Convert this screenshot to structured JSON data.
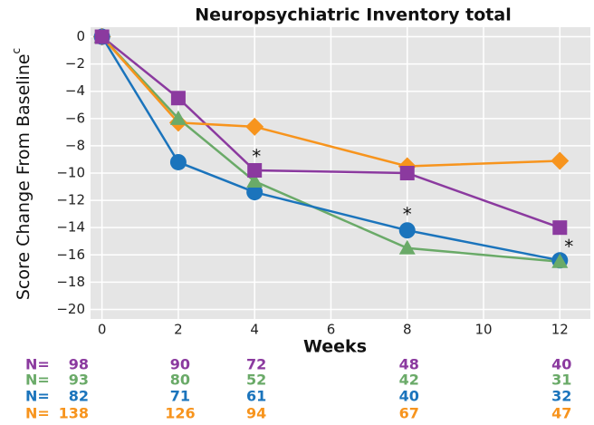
{
  "chart_data": {
    "type": "line",
    "title": "Neuropsychiatric Inventory total",
    "xlabel": "Weeks",
    "ylabel": "Score Change From Baseline",
    "ylabel_superscript": "c",
    "x": [
      0,
      2,
      4,
      8,
      12
    ],
    "xlim": [
      -0.3,
      12.8
    ],
    "xticks": [
      0,
      2,
      4,
      6,
      8,
      10,
      12
    ],
    "ylim": [
      -20.7,
      0.7
    ],
    "yticks": [
      0,
      {
        "value": -2,
        "label": "−2"
      },
      {
        "value": -4,
        "label": "−4"
      },
      {
        "value": -6,
        "label": "−6"
      },
      {
        "value": -8,
        "label": "−8"
      },
      {
        "value": -10,
        "label": "−10"
      },
      {
        "value": -12,
        "label": "−12"
      },
      {
        "value": -14,
        "label": "−14"
      },
      {
        "value": -16,
        "label": "−16"
      },
      {
        "value": -18,
        "label": "−18"
      },
      {
        "value": -20,
        "label": "−20"
      }
    ],
    "grid": true,
    "series": [
      {
        "color": "#8b3a9f",
        "marker": "square",
        "values": [
          0,
          -4.5,
          -9.8,
          -10,
          -14
        ]
      },
      {
        "color": "#6aaa68",
        "marker": "triangle",
        "values": [
          0,
          -6,
          -10.6,
          -15.5,
          -16.5
        ]
      },
      {
        "color": "#1b74bc",
        "marker": "circle",
        "values": [
          0,
          -9.2,
          -11.4,
          -14.2,
          -16.4
        ]
      },
      {
        "color": "#f7941d",
        "marker": "diamond",
        "values": [
          0,
          -6.3,
          -6.6,
          -9.5,
          -9.1
        ]
      }
    ],
    "annotations": [
      "*",
      "*",
      "*"
    ],
    "sample_sizes": {
      "label": "N=",
      "rows": [
        [
          98,
          90,
          72,
          48,
          40
        ],
        [
          93,
          80,
          52,
          42,
          31
        ],
        [
          82,
          71,
          61,
          40,
          32
        ],
        [
          138,
          126,
          94,
          67,
          47
        ]
      ]
    }
  }
}
